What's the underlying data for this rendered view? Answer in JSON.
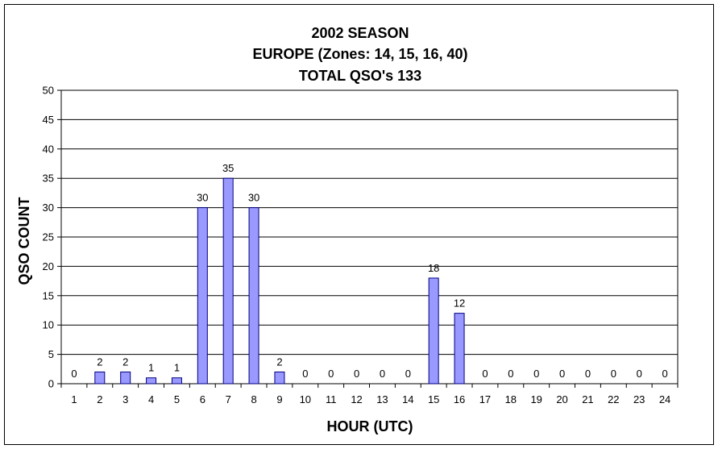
{
  "chart_data": {
    "type": "bar",
    "title_lines": [
      "2002 SEASON",
      "EUROPE (Zones: 14, 15, 16, 40)",
      "TOTAL QSO's 133"
    ],
    "xlabel": "HOUR (UTC)",
    "ylabel": "QSO COUNT",
    "categories": [
      "1",
      "2",
      "3",
      "4",
      "5",
      "6",
      "7",
      "8",
      "9",
      "10",
      "11",
      "12",
      "13",
      "14",
      "15",
      "16",
      "17",
      "18",
      "19",
      "20",
      "21",
      "22",
      "23",
      "24"
    ],
    "values": [
      0,
      2,
      2,
      1,
      1,
      30,
      35,
      30,
      2,
      0,
      0,
      0,
      0,
      0,
      18,
      12,
      0,
      0,
      0,
      0,
      0,
      0,
      0,
      0
    ],
    "ylim": [
      0,
      50
    ],
    "yticks": [
      0,
      5,
      10,
      15,
      20,
      25,
      30,
      35,
      40,
      45,
      50
    ],
    "grid": true,
    "legend": "none",
    "bar_color": "#9999ff",
    "bar_edge_color": "#000080"
  }
}
